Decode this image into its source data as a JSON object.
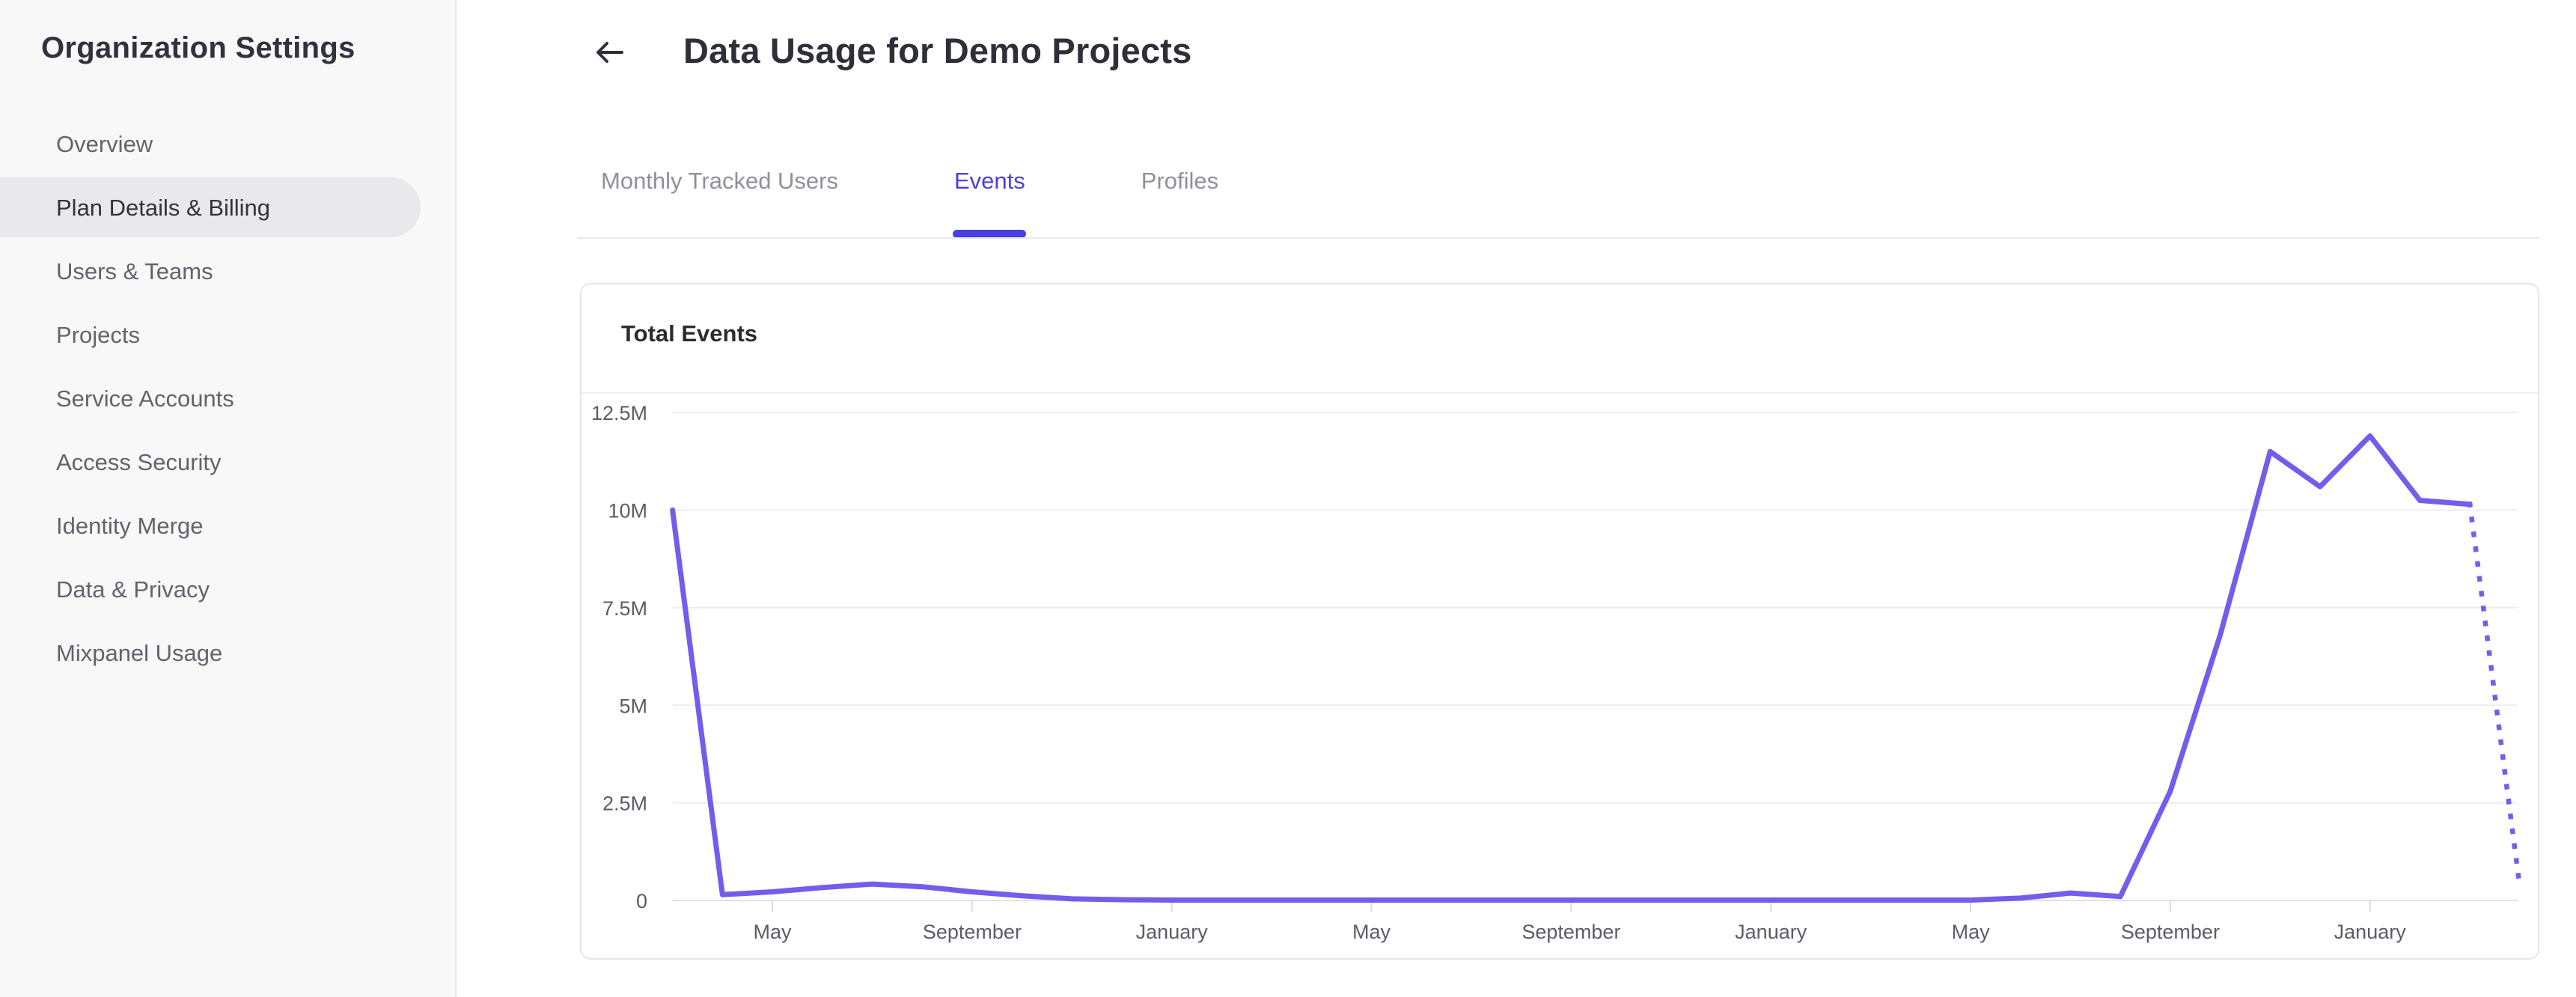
{
  "sidebar": {
    "title": "Organization Settings",
    "items": [
      {
        "label": "Overview",
        "active": false
      },
      {
        "label": "Plan Details & Billing",
        "active": true
      },
      {
        "label": "Users & Teams",
        "active": false
      },
      {
        "label": "Projects",
        "active": false
      },
      {
        "label": "Service Accounts",
        "active": false
      },
      {
        "label": "Access Security",
        "active": false
      },
      {
        "label": "Identity Merge",
        "active": false
      },
      {
        "label": "Data & Privacy",
        "active": false
      },
      {
        "label": "Mixpanel Usage",
        "active": false
      }
    ]
  },
  "header": {
    "back_icon": "left-arrow",
    "title": "Data Usage for Demo Projects"
  },
  "tabs": [
    {
      "label": "Monthly Tracked Users",
      "active": false
    },
    {
      "label": "Events",
      "active": true
    },
    {
      "label": "Profiles",
      "active": false
    }
  ],
  "card": {
    "title": "Total Events"
  },
  "colors": {
    "accent": "#4b3fe0",
    "line": "#755cec",
    "gridline": "#ededf0",
    "axis_line": "#e1e1e4",
    "tick": "#dcdcdf",
    "axis_text": "#5c5c66",
    "sidebar_bg": "#f8f8f9",
    "active_pill": "#e9e9eb"
  },
  "chart_data": {
    "type": "line",
    "title": "Total Events",
    "ylabel": "Total Events",
    "unit": "events (millions)",
    "ylim_millions": [
      0,
      12.5
    ],
    "grid": true,
    "legend": "none",
    "y_axis": {
      "ticks": [
        {
          "value_m": 0,
          "label": "0"
        },
        {
          "value_m": 2.5,
          "label": "2.5M"
        },
        {
          "value_m": 5,
          "label": "5M"
        },
        {
          "value_m": 7.5,
          "label": "7.5M"
        },
        {
          "value_m": 10,
          "label": "10M"
        },
        {
          "value_m": 12.5,
          "label": "12.5M"
        }
      ]
    },
    "x_axis": {
      "note": "monthly points, month_index 0 = first plotted month (March of year 1)",
      "ticks": [
        {
          "month_index": 2,
          "label": "May"
        },
        {
          "month_index": 6,
          "label": "September"
        },
        {
          "month_index": 10,
          "label": "January"
        },
        {
          "month_index": 14,
          "label": "May"
        },
        {
          "month_index": 18,
          "label": "September"
        },
        {
          "month_index": 22,
          "label": "January"
        },
        {
          "month_index": 26,
          "label": "May"
        },
        {
          "month_index": 30,
          "label": "September"
        },
        {
          "month_index": 34,
          "label": "January"
        }
      ]
    },
    "series": [
      {
        "name": "Total Events",
        "style": "solid",
        "values_m": [
          10,
          0.15,
          0.22,
          0.33,
          0.42,
          0.35,
          0.22,
          0.12,
          0.04,
          0.02,
          0.01,
          0.01,
          0.01,
          0.01,
          0.01,
          0.01,
          0.01,
          0.01,
          0.01,
          0.01,
          0.01,
          0.01,
          0.01,
          0.01,
          0.01,
          0.01,
          0.01,
          0.06,
          0.19,
          0.1,
          2.8,
          6.8,
          11.5,
          10.6,
          11.9,
          10.25,
          10.15
        ]
      }
    ],
    "projection": {
      "style": "dotted",
      "from_month_index": 36,
      "to_month_index": 37,
      "end_value_m": 0.35
    }
  }
}
